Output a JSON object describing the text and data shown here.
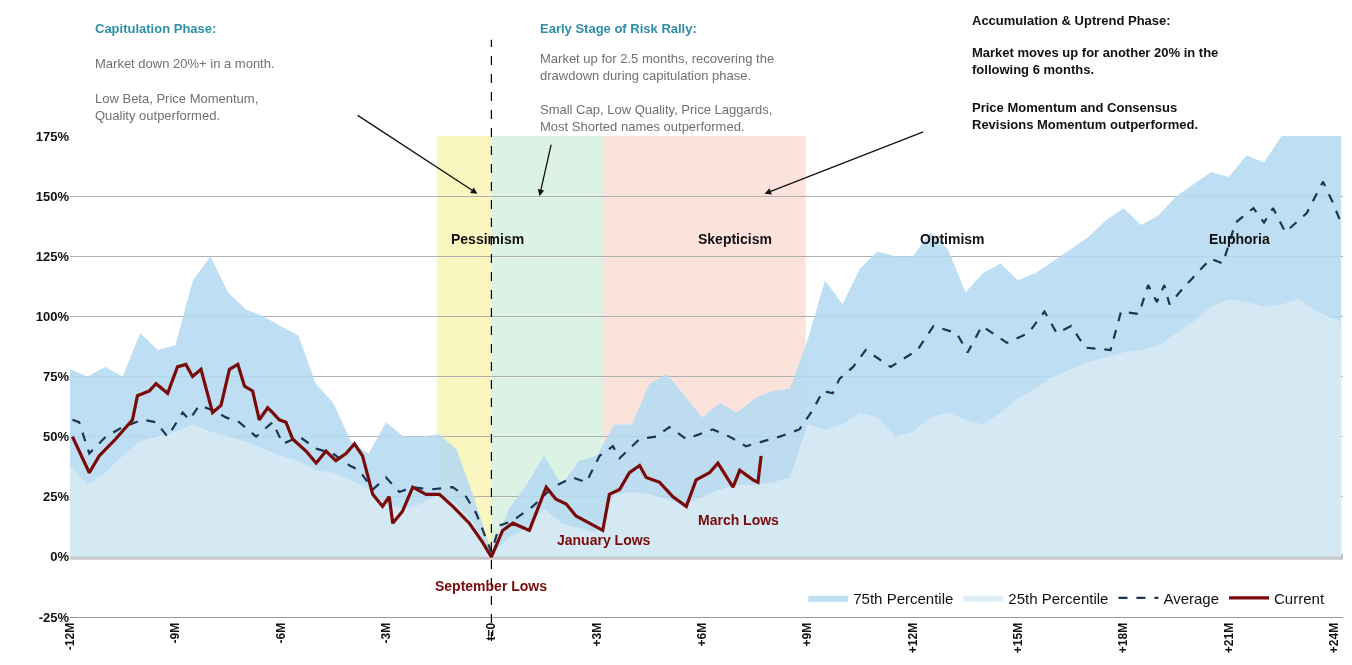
{
  "chart_data": {
    "type": "line",
    "xlim": [
      -12,
      24.25
    ],
    "ylim": [
      -25,
      175
    ],
    "xticks": [
      {
        "value": -12,
        "label": "-12M"
      },
      {
        "value": -9,
        "label": "-9M"
      },
      {
        "value": -6,
        "label": "-6M"
      },
      {
        "value": -3,
        "label": "-3M"
      },
      {
        "value": 0,
        "label": "t=0"
      },
      {
        "value": 3,
        "label": "+3M"
      },
      {
        "value": 6,
        "label": "+6M"
      },
      {
        "value": 9,
        "label": "+9M"
      },
      {
        "value": 12,
        "label": "+12M"
      },
      {
        "value": 15,
        "label": "+15M"
      },
      {
        "value": 18,
        "label": "+18M"
      },
      {
        "value": 21,
        "label": "+21M"
      },
      {
        "value": 24,
        "label": "+24M"
      }
    ],
    "yticks": [
      {
        "value": -25,
        "label": "-25%"
      },
      {
        "value": 0,
        "label": "0%"
      },
      {
        "value": 25,
        "label": "25%"
      },
      {
        "value": 50,
        "label": "50%"
      },
      {
        "value": 75,
        "label": "75%"
      },
      {
        "value": 100,
        "label": "100%"
      },
      {
        "value": 125,
        "label": "125%"
      },
      {
        "value": 150,
        "label": "150%"
      },
      {
        "value": 175,
        "label": "175%"
      }
    ],
    "grid": "y",
    "legend": "bottom right",
    "series": [
      {
        "name": "75th Percentile",
        "type": "area",
        "color": "#b5dbf1",
        "x": [
          -12,
          -11.5,
          -11,
          -10.5,
          -10,
          -9.5,
          -9,
          -8.5,
          -8,
          -7.5,
          -7,
          -6.5,
          -6,
          -5.5,
          -5,
          -4.5,
          -4,
          -3.5,
          -3,
          -2.5,
          -2,
          -1.5,
          -1,
          -0.5,
          0,
          0.5,
          1,
          1.5,
          2,
          2.5,
          3,
          3.5,
          4,
          4.5,
          5,
          5.5,
          6,
          6.5,
          7,
          7.5,
          8,
          8.5,
          9,
          9.5,
          10,
          10.5,
          11,
          11.5,
          12,
          12.5,
          13,
          13.5,
          14,
          14.5,
          15,
          15.5,
          16,
          16.5,
          17,
          17.5,
          18,
          18.5,
          19,
          19.5,
          20,
          20.5,
          21,
          21.5,
          22,
          22.5,
          23,
          23.5,
          24,
          24.2
        ],
        "values": [
          78,
          75,
          79,
          75,
          93,
          86,
          88,
          115,
          125,
          110,
          103,
          100,
          96,
          92,
          72,
          64,
          48,
          43,
          56,
          50,
          50,
          51,
          45,
          25,
          2,
          20,
          30,
          42,
          30,
          40,
          42,
          55,
          55,
          72,
          76,
          67,
          58,
          64,
          60,
          66,
          69,
          70,
          90,
          115,
          105,
          120,
          127,
          125,
          125,
          135,
          128,
          110,
          118,
          122,
          115,
          118,
          123,
          128,
          133,
          140,
          145,
          138,
          142,
          150,
          155,
          160,
          158,
          167,
          164,
          175,
          175,
          175,
          175,
          175
        ]
      },
      {
        "name": "25th Percentile",
        "type": "area",
        "color": "#d7ebf4",
        "x": [
          -12,
          -11.5,
          -11,
          -10.5,
          -10,
          -9.5,
          -9,
          -8.5,
          -8,
          -7.5,
          -7,
          -6.5,
          -6,
          -5.5,
          -5,
          -4.5,
          -4,
          -3.5,
          -3,
          -2.5,
          -2,
          -1.5,
          -1,
          -0.5,
          0,
          0.5,
          1,
          1.5,
          2,
          2.5,
          3,
          3.5,
          4,
          4.5,
          5,
          5.5,
          6,
          6.5,
          7,
          7.5,
          8,
          8.5,
          9,
          9.5,
          10,
          10.5,
          11,
          11.5,
          12,
          12.5,
          13,
          13.5,
          14,
          14.5,
          15,
          15.5,
          16,
          16.5,
          17,
          17.5,
          18,
          18.5,
          19,
          19.5,
          20,
          20.5,
          21,
          21.5,
          22,
          22.5,
          23,
          23.5,
          24,
          24.2
        ],
        "values": [
          38,
          30,
          35,
          42,
          48,
          50,
          52,
          55,
          52,
          50,
          48,
          45,
          42,
          40,
          36,
          35,
          32,
          28,
          22,
          20,
          22,
          26,
          22,
          14,
          1,
          8,
          12,
          20,
          14,
          12,
          10,
          26,
          27,
          26,
          24,
          22,
          25,
          28,
          30,
          30,
          31,
          33,
          55,
          53,
          55,
          60,
          58,
          50,
          52,
          58,
          60,
          57,
          55,
          60,
          66,
          70,
          75,
          78,
          81,
          83,
          85,
          86,
          88,
          93,
          98,
          104,
          107,
          106,
          104,
          105,
          107,
          102,
          99,
          98
        ]
      },
      {
        "name": "Average",
        "color": "#1c3553",
        "line_style": "dashed",
        "x": [
          -11.93,
          -11.74,
          -11.45,
          -10.98,
          -10.5,
          -9.93,
          -9.55,
          -9.22,
          -8.79,
          -8.6,
          -8.32,
          -7.94,
          -7.56,
          -7.18,
          -6.7,
          -6.23,
          -5.94,
          -5.47,
          -4.99,
          -4.52,
          -4.04,
          -3.76,
          -3.38,
          -3,
          -2.62,
          -2.24,
          -1.77,
          -1.1,
          -0.72,
          -0.43,
          0,
          0.23,
          0.61,
          1.18,
          1.75,
          2.32,
          2.7,
          3.08,
          3.46,
          3.65,
          4.22,
          4.69,
          5.07,
          5.55,
          6.3,
          6.78,
          7.25,
          7.73,
          8.21,
          8.77,
          9.15,
          9.44,
          9.72,
          9.91,
          10.3,
          10.66,
          11.37,
          12.13,
          12.59,
          13.25,
          13.56,
          13.97,
          14.68,
          15.29,
          15.75,
          16.1,
          16.51,
          16.91,
          17.63,
          17.93,
          18.44,
          18.7,
          18.95,
          19.16,
          19.31,
          19.71,
          19.97,
          20.48,
          20.83,
          21.19,
          21.7,
          22.0,
          22.26,
          22.61,
          23.22,
          23.68,
          23.94,
          24.19
        ],
        "values": [
          57,
          56,
          43,
          50,
          54,
          57,
          56,
          50,
          60,
          57,
          63,
          61,
          58,
          56,
          50,
          56,
          47,
          50,
          45,
          43,
          38,
          36,
          28,
          33,
          27,
          29,
          28,
          29,
          25,
          18,
          2,
          13,
          15,
          21,
          29,
          33,
          31,
          42,
          46,
          41,
          49,
          50,
          54,
          49,
          53,
          50,
          46,
          48,
          50,
          53,
          61,
          69,
          68,
          74,
          79,
          86,
          79,
          86,
          96,
          93,
          85,
          96,
          89,
          93,
          102,
          93,
          96,
          87,
          86,
          102,
          101,
          113,
          106,
          113,
          105,
          112,
          116,
          124,
          122,
          139,
          145,
          139,
          145,
          135,
          143,
          156,
          148,
          139
        ]
      },
      {
        "name": "Current",
        "color": "#7a0a0a",
        "line_style": "solid",
        "x": [
          -11.93,
          -11.45,
          -11.17,
          -10.7,
          -10.22,
          -10.08,
          -9.74,
          -9.55,
          -9.22,
          -8.94,
          -8.7,
          -8.51,
          -8.27,
          -7.94,
          -7.7,
          -7.46,
          -7.22,
          -7.03,
          -6.8,
          -6.61,
          -6.37,
          -6.23,
          -6.04,
          -5.85,
          -5.66,
          -5.28,
          -4.99,
          -4.71,
          -4.43,
          -4.14,
          -3.9,
          -3.67,
          -3.38,
          -3.1,
          -2.91,
          -2.81,
          -2.53,
          -2.24,
          -1.86,
          -1.48,
          -1.1,
          -0.63,
          -0.25,
          0,
          0.32,
          0.61,
          1.08,
          1.56,
          1.84,
          2.13,
          2.41,
          2.79,
          3.17,
          3.36,
          3.65,
          3.93,
          4.22,
          4.41,
          4.79,
          5.17,
          5.55,
          5.83,
          6.21,
          6.45,
          6.88,
          7.07,
          7.45,
          7.59,
          7.68
        ],
        "values": [
          50,
          35,
          42,
          49,
          57,
          67,
          69,
          72,
          68,
          79,
          80,
          75,
          78,
          60,
          63,
          78,
          80,
          71,
          69,
          57,
          62,
          60,
          57,
          56,
          49,
          44,
          39,
          44,
          40,
          43,
          47,
          42,
          26,
          21,
          25,
          14,
          19,
          29,
          26,
          26,
          21,
          14,
          6,
          0,
          11,
          14,
          11,
          29,
          24,
          22,
          17,
          14,
          11,
          26,
          28,
          35,
          38,
          33,
          31,
          25,
          21,
          32,
          35,
          39,
          29,
          36,
          32,
          31,
          42
        ]
      }
    ],
    "ref_lines": [
      {
        "axis": "x",
        "value": 0,
        "color": "#000000",
        "line_style": "dashed"
      },
      {
        "axis": "y",
        "value": 0,
        "color": "#c8c8c8",
        "line_style": "solid"
      }
    ],
    "bands": [
      {
        "axis": "x",
        "from": -1.55,
        "to": 0,
        "color": "#faf6c0"
      },
      {
        "axis": "x",
        "from": 0,
        "to": 3.2,
        "color": "#dcf2e5"
      },
      {
        "axis": "x",
        "from": 3.2,
        "to": 8.95,
        "color": "#fbe3dc"
      }
    ],
    "annotations": [
      "Capitulation Phase:",
      "Market down 20%+ in a month.",
      "Low Beta, Price Momentum,\nQuality outperformed.",
      "Early Stage of Risk Rally:",
      "Market up for 2.5 months, recovering the\ndrawdown during capitulation phase.",
      "Small Cap, Low Quality, Price Laggards,\nMost Shorted names outperformed.",
      "Accumulation & Uptrend Phase:",
      "Market moves up for another 20% in the\nfollowing 6 months.",
      "Price Momentum and Consensus\nRevisions Momentum outperformed.",
      "Pessimism",
      "Skepticism",
      "Optimism",
      "Euphoria",
      {
        "text": "September Lows",
        "x": 0,
        "y": -12
      },
      {
        "text": "January Lows",
        "x": 3.2,
        "y": 7
      },
      "March Lows"
    ]
  }
}
